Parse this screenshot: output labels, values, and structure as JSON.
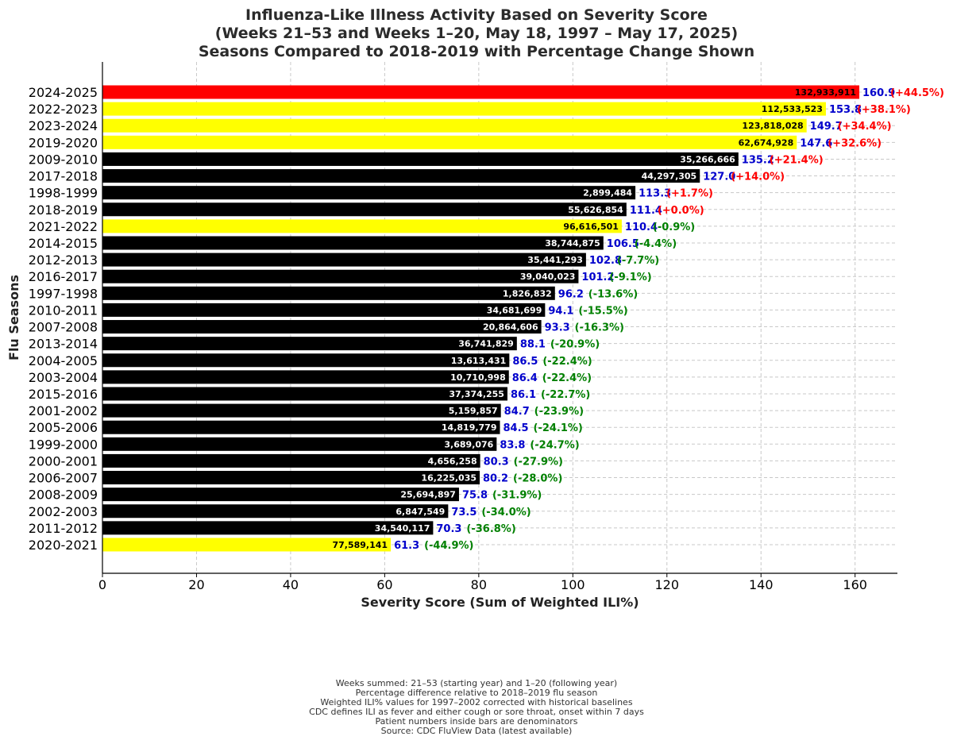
{
  "title_lines": [
    "Influenza-Like Illness Activity Based on Severity Score",
    "(Weeks 21–53 and Weeks 1–20, May 18, 1997 – May 17, 2025)",
    "Seasons Compared to 2018-2019 with Percentage Change Shown"
  ],
  "footnotes": [
    "Weeks summed: 21–53 (starting year) and 1–20 (following year)",
    "Percentage difference relative to 2018–2019 flu season",
    "Weighted ILI% values for 1997–2002 corrected with historical baselines",
    "CDC defines ILI as fever and either cough or sore throat, onset within 7 days",
    "Patient numbers inside bars are denominators",
    "Source: CDC FluView Data (latest available)"
  ],
  "colors": {
    "highlight_red": "#ff0000",
    "highlight_yellow": "#ffff00",
    "default_bar": "#000000",
    "score_text": "#0000cc",
    "pct_positive": "#ff0000",
    "pct_negative": "#008000"
  },
  "chart_data": {
    "type": "bar",
    "orientation": "horizontal",
    "xlabel": "Severity Score (Sum of Weighted ILI%)",
    "ylabel": "Flu Seasons",
    "xlim": [
      0,
      169
    ],
    "xticks": [
      0,
      20,
      40,
      60,
      80,
      100,
      120,
      140,
      160
    ],
    "grid": true,
    "rows": [
      {
        "season": "2024-2025",
        "value": 160.9,
        "patients": "132,933,911",
        "pct": "(+44.5%)",
        "highlight": "red"
      },
      {
        "season": "2022-2023",
        "value": 153.8,
        "patients": "112,533,523",
        "pct": "(+38.1%)",
        "highlight": "yellow"
      },
      {
        "season": "2023-2024",
        "value": 149.7,
        "patients": "123,818,028",
        "pct": "(+34.4%)",
        "highlight": "yellow"
      },
      {
        "season": "2019-2020",
        "value": 147.6,
        "patients": "62,674,928",
        "pct": "(+32.6%)",
        "highlight": "yellow"
      },
      {
        "season": "2009-2010",
        "value": 135.2,
        "patients": "35,266,666",
        "pct": "(+21.4%)",
        "highlight": "none"
      },
      {
        "season": "2017-2018",
        "value": 127.0,
        "patients": "44,297,305",
        "pct": "(+14.0%)",
        "highlight": "none"
      },
      {
        "season": "1998-1999",
        "value": 113.3,
        "patients": "2,899,484",
        "pct": "(+1.7%)",
        "highlight": "none"
      },
      {
        "season": "2018-2019",
        "value": 111.4,
        "patients": "55,626,854",
        "pct": "(+0.0%)",
        "highlight": "none"
      },
      {
        "season": "2021-2022",
        "value": 110.4,
        "patients": "96,616,501",
        "pct": "(-0.9%)",
        "highlight": "yellow"
      },
      {
        "season": "2014-2015",
        "value": 106.5,
        "patients": "38,744,875",
        "pct": "(-4.4%)",
        "highlight": "none"
      },
      {
        "season": "2012-2013",
        "value": 102.8,
        "patients": "35,441,293",
        "pct": "(-7.7%)",
        "highlight": "none"
      },
      {
        "season": "2016-2017",
        "value": 101.2,
        "patients": "39,040,023",
        "pct": "(-9.1%)",
        "highlight": "none"
      },
      {
        "season": "1997-1998",
        "value": 96.2,
        "patients": "1,826,832",
        "pct": "(-13.6%)",
        "highlight": "none"
      },
      {
        "season": "2010-2011",
        "value": 94.1,
        "patients": "34,681,699",
        "pct": "(-15.5%)",
        "highlight": "none"
      },
      {
        "season": "2007-2008",
        "value": 93.3,
        "patients": "20,864,606",
        "pct": "(-16.3%)",
        "highlight": "none"
      },
      {
        "season": "2013-2014",
        "value": 88.1,
        "patients": "36,741,829",
        "pct": "(-20.9%)",
        "highlight": "none"
      },
      {
        "season": "2004-2005",
        "value": 86.5,
        "patients": "13,613,431",
        "pct": "(-22.4%)",
        "highlight": "none"
      },
      {
        "season": "2003-2004",
        "value": 86.4,
        "patients": "10,710,998",
        "pct": "(-22.4%)",
        "highlight": "none"
      },
      {
        "season": "2015-2016",
        "value": 86.1,
        "patients": "37,374,255",
        "pct": "(-22.7%)",
        "highlight": "none"
      },
      {
        "season": "2001-2002",
        "value": 84.7,
        "patients": "5,159,857",
        "pct": "(-23.9%)",
        "highlight": "none"
      },
      {
        "season": "2005-2006",
        "value": 84.5,
        "patients": "14,819,779",
        "pct": "(-24.1%)",
        "highlight": "none"
      },
      {
        "season": "1999-2000",
        "value": 83.8,
        "patients": "3,689,076",
        "pct": "(-24.7%)",
        "highlight": "none"
      },
      {
        "season": "2000-2001",
        "value": 80.3,
        "patients": "4,656,258",
        "pct": "(-27.9%)",
        "highlight": "none"
      },
      {
        "season": "2006-2007",
        "value": 80.2,
        "patients": "16,225,035",
        "pct": "(-28.0%)",
        "highlight": "none"
      },
      {
        "season": "2008-2009",
        "value": 75.8,
        "patients": "25,694,897",
        "pct": "(-31.9%)",
        "highlight": "none"
      },
      {
        "season": "2002-2003",
        "value": 73.5,
        "patients": "6,847,549",
        "pct": "(-34.0%)",
        "highlight": "none"
      },
      {
        "season": "2011-2012",
        "value": 70.3,
        "patients": "34,540,117",
        "pct": "(-36.8%)",
        "highlight": "none"
      },
      {
        "season": "2020-2021",
        "value": 61.3,
        "patients": "77,589,141",
        "pct": "(-44.9%)",
        "highlight": "yellow"
      }
    ]
  }
}
